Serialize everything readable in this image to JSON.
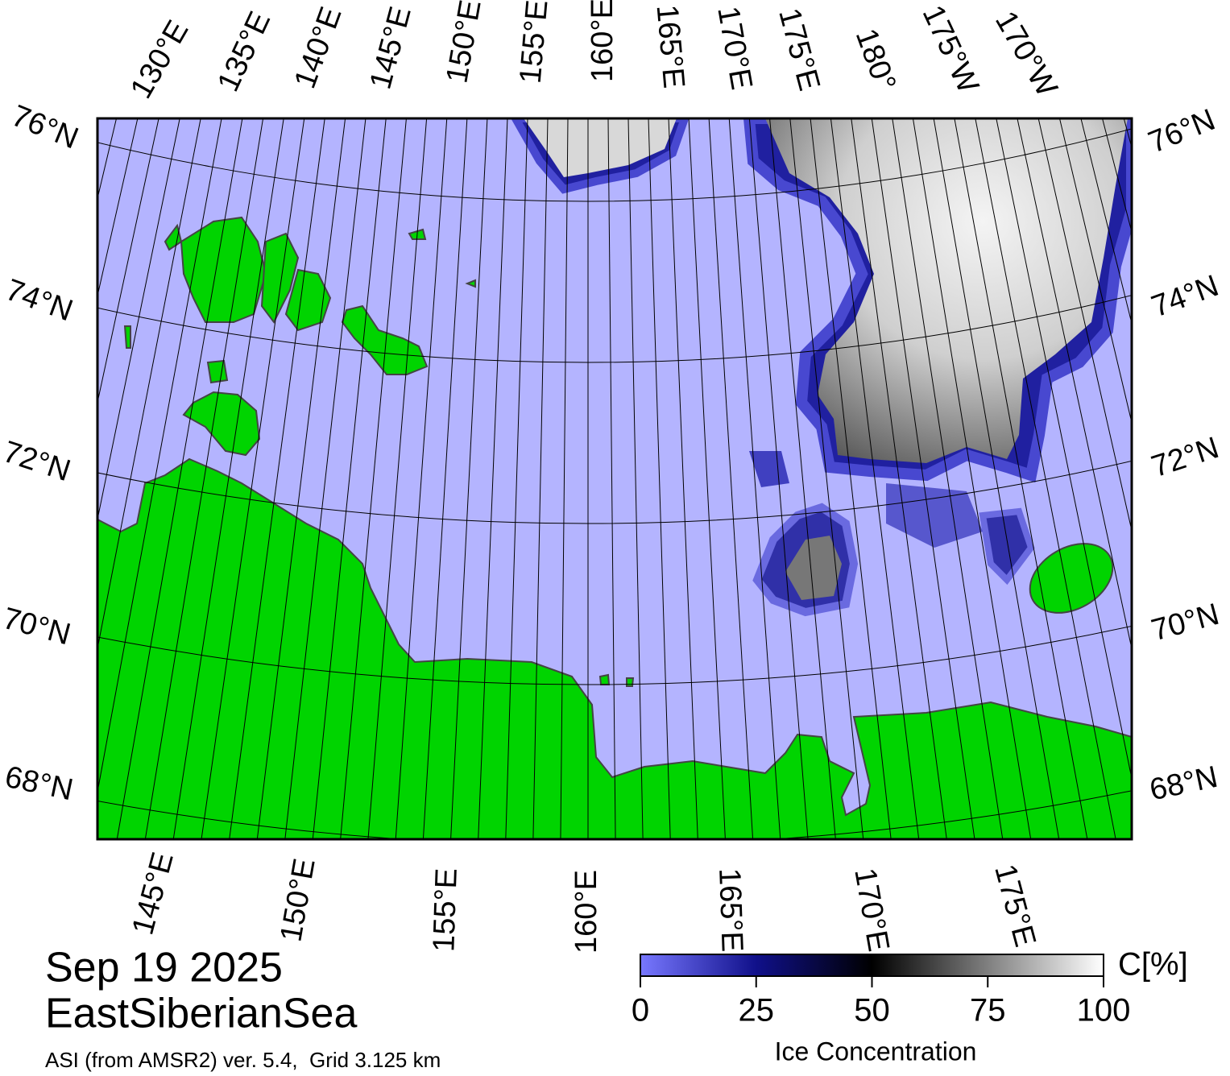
{
  "map": {
    "title": "Sep 19 2025",
    "region": "EastSiberianSea",
    "subtitle": "ASI (from AMSR2) ver. 5.4,  Grid 3.125 km",
    "top_longitude_labels": [
      "130°E",
      "135°E",
      "140°E",
      "145°E",
      "150°E",
      "155°E",
      "160°E",
      "165°E",
      "170°E",
      "175°E",
      "180°",
      "175°W",
      "170°W"
    ],
    "bottom_longitude_labels": [
      "145°E",
      "150°E",
      "155°E",
      "160°E",
      "165°E",
      "170°E",
      "175°E"
    ],
    "left_latitude_labels": [
      "76°N",
      "74°N",
      "72°N",
      "70°N",
      "68°N"
    ],
    "right_latitude_labels": [
      "76°N",
      "74°N",
      "72°N",
      "70°N",
      "68°N"
    ]
  },
  "colorbar": {
    "label": "Ice Concentration",
    "unit": "C[%]",
    "lim": [
      0,
      100
    ],
    "ticks": [
      0,
      25,
      50,
      75,
      100
    ]
  }
}
